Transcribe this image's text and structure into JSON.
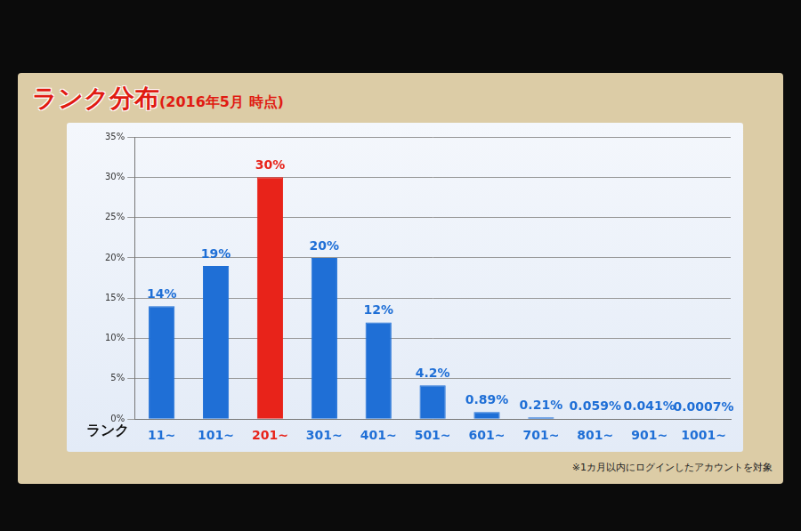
{
  "chart_data": {
    "type": "bar",
    "title": "ランク分布",
    "subtitle": "(2016年5月 時点)",
    "x_label": "ランク",
    "annotation": "※1カ月以内にログインしたアカウントを対象",
    "categories": [
      "11~",
      "101~",
      "201~",
      "301~",
      "401~",
      "501~",
      "601~",
      "701~",
      "801~",
      "901~",
      "1001~"
    ],
    "values": [
      14,
      19,
      30,
      20,
      12,
      4.2,
      0.89,
      0.21,
      0.059,
      0.041,
      0.0007
    ],
    "value_labels": [
      "14%",
      "19%",
      "30%",
      "20%",
      "12%",
      "4.2%",
      "0.89%",
      "0.21%",
      "0.059%",
      "0.041%",
      "0.0007%"
    ],
    "colors": [
      "#1f6fd6",
      "#1f6fd6",
      "#e8231a",
      "#1f6fd6",
      "#1f6fd6",
      "#1f6fd6",
      "#1f6fd6",
      "#1f6fd6",
      "#1f6fd6",
      "#1f6fd6",
      "#1f6fd6"
    ],
    "ylim": [
      0,
      35
    ],
    "yticks": [
      {
        "value": 0,
        "label": "0%"
      },
      {
        "value": 5,
        "label": "5%"
      },
      {
        "value": 10,
        "label": "10%"
      },
      {
        "value": 15,
        "label": "15%"
      },
      {
        "value": 20,
        "label": "20%"
      },
      {
        "value": 25,
        "label": "25%"
      },
      {
        "value": 30,
        "label": "30%"
      },
      {
        "value": 35,
        "label": "35%"
      }
    ],
    "grid": true,
    "data_labels": true
  }
}
